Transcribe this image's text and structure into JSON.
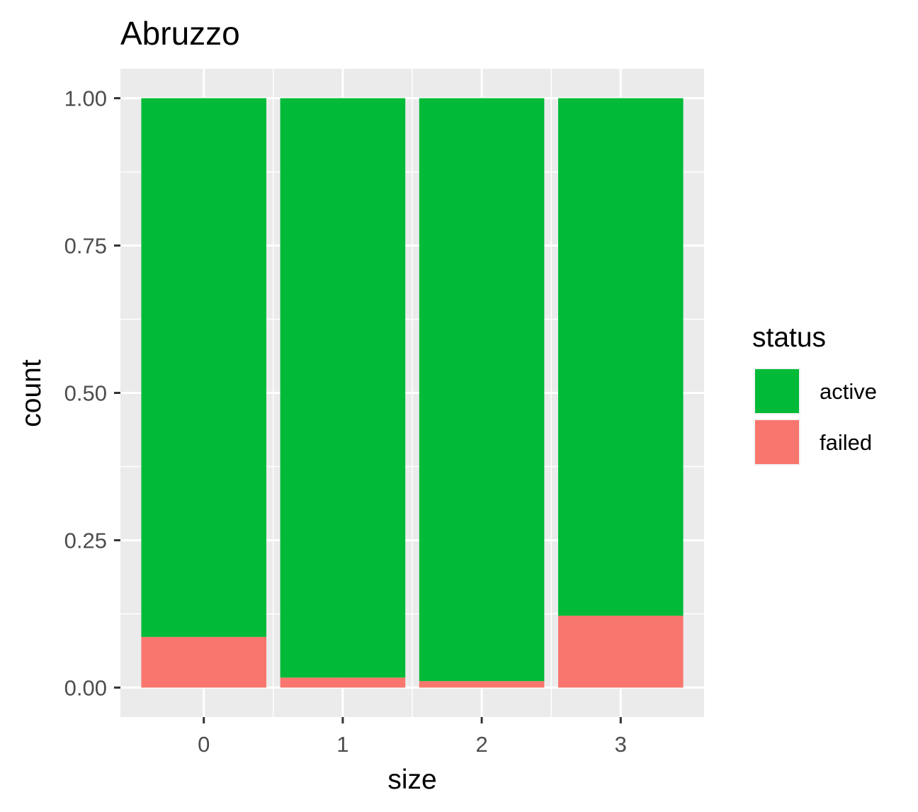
{
  "chart_data": {
    "type": "bar",
    "stacked": true,
    "title": "Abruzzo",
    "xlabel": "size",
    "ylabel": "count",
    "categories": [
      "0",
      "1",
      "2",
      "3"
    ],
    "series": [
      {
        "name": "failed",
        "color": "#F8766D",
        "values": [
          0.086,
          0.017,
          0.011,
          0.122
        ]
      },
      {
        "name": "active",
        "color": "#00BA38",
        "values": [
          0.914,
          0.983,
          0.989,
          0.878
        ]
      }
    ],
    "ylim": [
      -0.05,
      1.05
    ],
    "yticks": [
      0.0,
      0.25,
      0.5,
      0.75,
      1.0
    ],
    "ytick_labels": [
      "0.00",
      "0.25",
      "0.50",
      "0.75",
      "1.00"
    ],
    "grid": true,
    "legend": {
      "title": "status",
      "position": "right",
      "entries": [
        {
          "label": "active",
          "color": "#00BA38"
        },
        {
          "label": "failed",
          "color": "#F8766D"
        }
      ]
    },
    "panel_background": "#EBEBEB",
    "grid_color": "#FFFFFF"
  }
}
